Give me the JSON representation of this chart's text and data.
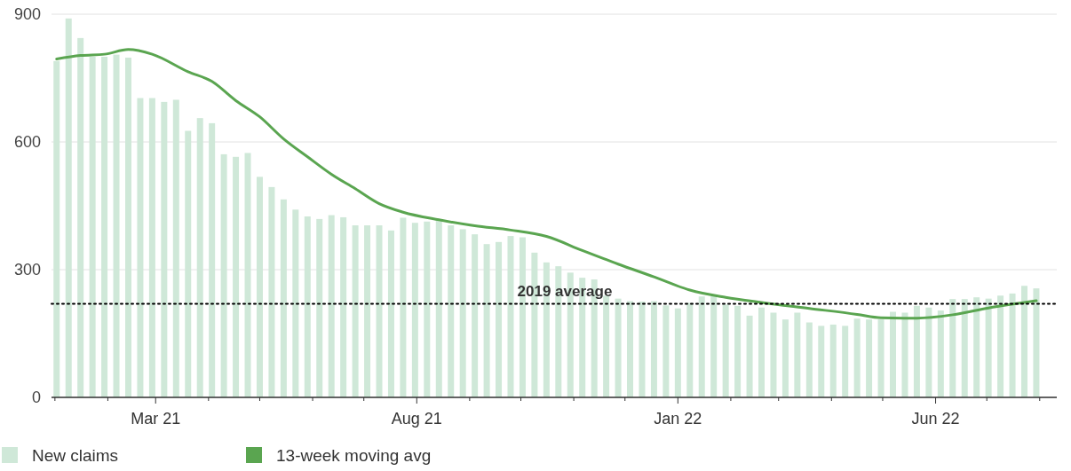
{
  "chart_data": {
    "type": "bar",
    "x": [
      "2021-01-02",
      "2021-01-09",
      "2021-01-16",
      "2021-01-23",
      "2021-01-30",
      "2021-02-06",
      "2021-02-13",
      "2021-02-20",
      "2021-02-27",
      "2021-03-06",
      "2021-03-13",
      "2021-03-20",
      "2021-03-27",
      "2021-04-03",
      "2021-04-10",
      "2021-04-17",
      "2021-04-24",
      "2021-05-01",
      "2021-05-08",
      "2021-05-15",
      "2021-05-22",
      "2021-05-29",
      "2021-06-05",
      "2021-06-12",
      "2021-06-19",
      "2021-06-26",
      "2021-07-03",
      "2021-07-10",
      "2021-07-17",
      "2021-07-24",
      "2021-07-31",
      "2021-08-07",
      "2021-08-14",
      "2021-08-21",
      "2021-08-28",
      "2021-09-04",
      "2021-09-11",
      "2021-09-18",
      "2021-09-25",
      "2021-10-02",
      "2021-10-09",
      "2021-10-16",
      "2021-10-23",
      "2021-10-30",
      "2021-11-06",
      "2021-11-13",
      "2021-11-20",
      "2021-11-27",
      "2021-12-04",
      "2021-12-11",
      "2021-12-18",
      "2021-12-25",
      "2022-01-01",
      "2022-01-08",
      "2022-01-15",
      "2022-01-22",
      "2022-01-29",
      "2022-02-05",
      "2022-02-12",
      "2022-02-19",
      "2022-02-26",
      "2022-03-05",
      "2022-03-12",
      "2022-03-19",
      "2022-03-26",
      "2022-04-02",
      "2022-04-09",
      "2022-04-16",
      "2022-04-23",
      "2022-04-30",
      "2022-05-07",
      "2022-05-14",
      "2022-05-21",
      "2022-05-28",
      "2022-06-04",
      "2022-06-11",
      "2022-06-18",
      "2022-06-25",
      "2022-07-02",
      "2022-07-09",
      "2022-07-16",
      "2022-07-23",
      "2022-07-30"
    ],
    "series": [
      {
        "name": "New claims",
        "color": "#cfe8d8",
        "values": [
          790,
          890,
          844,
          800,
          800,
          805,
          798,
          703,
          703,
          694,
          699,
          626,
          656,
          644,
          571,
          565,
          574,
          518,
          494,
          465,
          441,
          425,
          419,
          428,
          423,
          404,
          404,
          404,
          392,
          422,
          410,
          413,
          416,
          404,
          395,
          383,
          360,
          365,
          379,
          376,
          340,
          317,
          308,
          293,
          281,
          277,
          239,
          232,
          226,
          225,
          226,
          216,
          209,
          222,
          237,
          239,
          218,
          215,
          192,
          211,
          199,
          183,
          199,
          176,
          168,
          171,
          168,
          185,
          183,
          183,
          201,
          199,
          215,
          211,
          204,
          231,
          231,
          235,
          232,
          239,
          244,
          262,
          256
        ]
      },
      {
        "name": "13-week moving avg",
        "type": "line",
        "color": "#5aa550",
        "x": [
          "2021-01-02",
          "2021-01-16",
          "2021-01-30",
          "2021-02-13",
          "2021-02-27",
          "2021-03-20",
          "2021-04-03",
          "2021-04-17",
          "2021-05-01",
          "2021-05-15",
          "2021-05-29",
          "2021-06-12",
          "2021-06-26",
          "2021-07-10",
          "2021-07-24",
          "2021-08-14",
          "2021-09-04",
          "2021-09-25",
          "2021-10-16",
          "2021-11-06",
          "2021-11-27",
          "2021-12-18",
          "2022-01-08",
          "2022-01-29",
          "2022-02-19",
          "2022-03-19",
          "2022-04-16",
          "2022-04-30",
          "2022-05-21",
          "2022-06-11",
          "2022-07-02",
          "2022-07-30"
        ],
        "values": [
          795,
          803,
          806,
          817,
          806,
          765,
          742,
          697,
          659,
          607,
          565,
          524,
          490,
          455,
          435,
          417,
          403,
          393,
          378,
          345,
          313,
          283,
          252,
          235,
          223,
          209,
          195,
          187,
          186,
          194,
          210,
          227
        ]
      }
    ],
    "xlim": [
      "2020-12-30",
      "2022-08-11"
    ],
    "xticks": [
      {
        "value": "2021-01-01",
        "label": null
      },
      {
        "value": "2021-02-01",
        "label": null
      },
      {
        "value": "2021-03-01",
        "label": "Mar 21"
      },
      {
        "value": "2021-04-01",
        "label": null
      },
      {
        "value": "2021-05-01",
        "label": null
      },
      {
        "value": "2021-06-01",
        "label": null
      },
      {
        "value": "2021-07-01",
        "label": null
      },
      {
        "value": "2021-08-01",
        "label": "Aug 21"
      },
      {
        "value": "2021-09-01",
        "label": null
      },
      {
        "value": "2021-10-01",
        "label": null
      },
      {
        "value": "2021-11-01",
        "label": null
      },
      {
        "value": "2021-12-01",
        "label": null
      },
      {
        "value": "2022-01-01",
        "label": "Jan 22"
      },
      {
        "value": "2022-02-01",
        "label": null
      },
      {
        "value": "2022-03-01",
        "label": null
      },
      {
        "value": "2022-04-01",
        "label": null
      },
      {
        "value": "2022-05-01",
        "label": null
      },
      {
        "value": "2022-06-01",
        "label": "Jun 22"
      },
      {
        "value": "2022-07-01",
        "label": null
      },
      {
        "value": "2022-08-01",
        "label": null
      }
    ],
    "ylim": [
      0,
      900
    ],
    "yticks": [
      0,
      300,
      600,
      900
    ],
    "grid": "y",
    "ref_lines": [
      {
        "axis": "y",
        "value": 220,
        "label": "2019 average",
        "color": "#000000",
        "line_style": "dotted"
      }
    ],
    "legend": "bottom"
  }
}
